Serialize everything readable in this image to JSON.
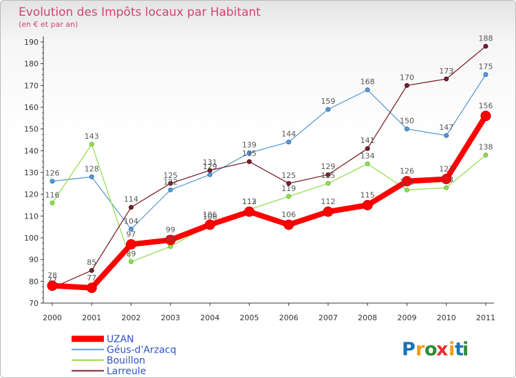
{
  "chart_data": {
    "type": "line",
    "title": "Evolution des Impôts locaux par Habitant",
    "subtitle": "(en € et par an)",
    "xlabel": "",
    "ylabel": "",
    "ylim": [
      70,
      190
    ],
    "yticks": [
      "70",
      "80",
      "90",
      "100",
      "110",
      "120",
      "130",
      "140",
      "150",
      "160",
      "170",
      "180",
      "190"
    ],
    "categories": [
      "2000",
      "2001",
      "2002",
      "2003",
      "2004",
      "2005",
      "2006",
      "2007",
      "2008",
      "2009",
      "2010",
      "2011"
    ],
    "grid": false,
    "legend": "bottom-left",
    "series": [
      {
        "name": "UZAN",
        "color": "#ff0000",
        "values": [
          78,
          77,
          97,
          99,
          106,
          112,
          106,
          112,
          115,
          126,
          127,
          156
        ]
      },
      {
        "name": "Géus-d'Arzacq",
        "color": "#5b9bd5",
        "values": [
          126,
          128,
          104,
          122,
          129,
          139,
          144,
          159,
          168,
          150,
          147,
          175
        ]
      },
      {
        "name": "Bouillon",
        "color": "#99dd55",
        "values": [
          116,
          143,
          89,
          96,
          106,
          113,
          119,
          125,
          134,
          122,
          123,
          138
        ]
      },
      {
        "name": "Larreule",
        "color": "#7b1f2a",
        "values": [
          77,
          85,
          114,
          125,
          131,
          135,
          125,
          129,
          141,
          170,
          173,
          188
        ]
      }
    ]
  },
  "brand": {
    "letters": [
      "P",
      "r",
      "o",
      "x",
      "i",
      "t",
      "i"
    ],
    "colors": [
      "#1a73b7",
      "#f39c12",
      "#2e8b3a",
      "#e8322d",
      "#f39c12",
      "#1a73b7",
      "#2e8b3a"
    ]
  }
}
